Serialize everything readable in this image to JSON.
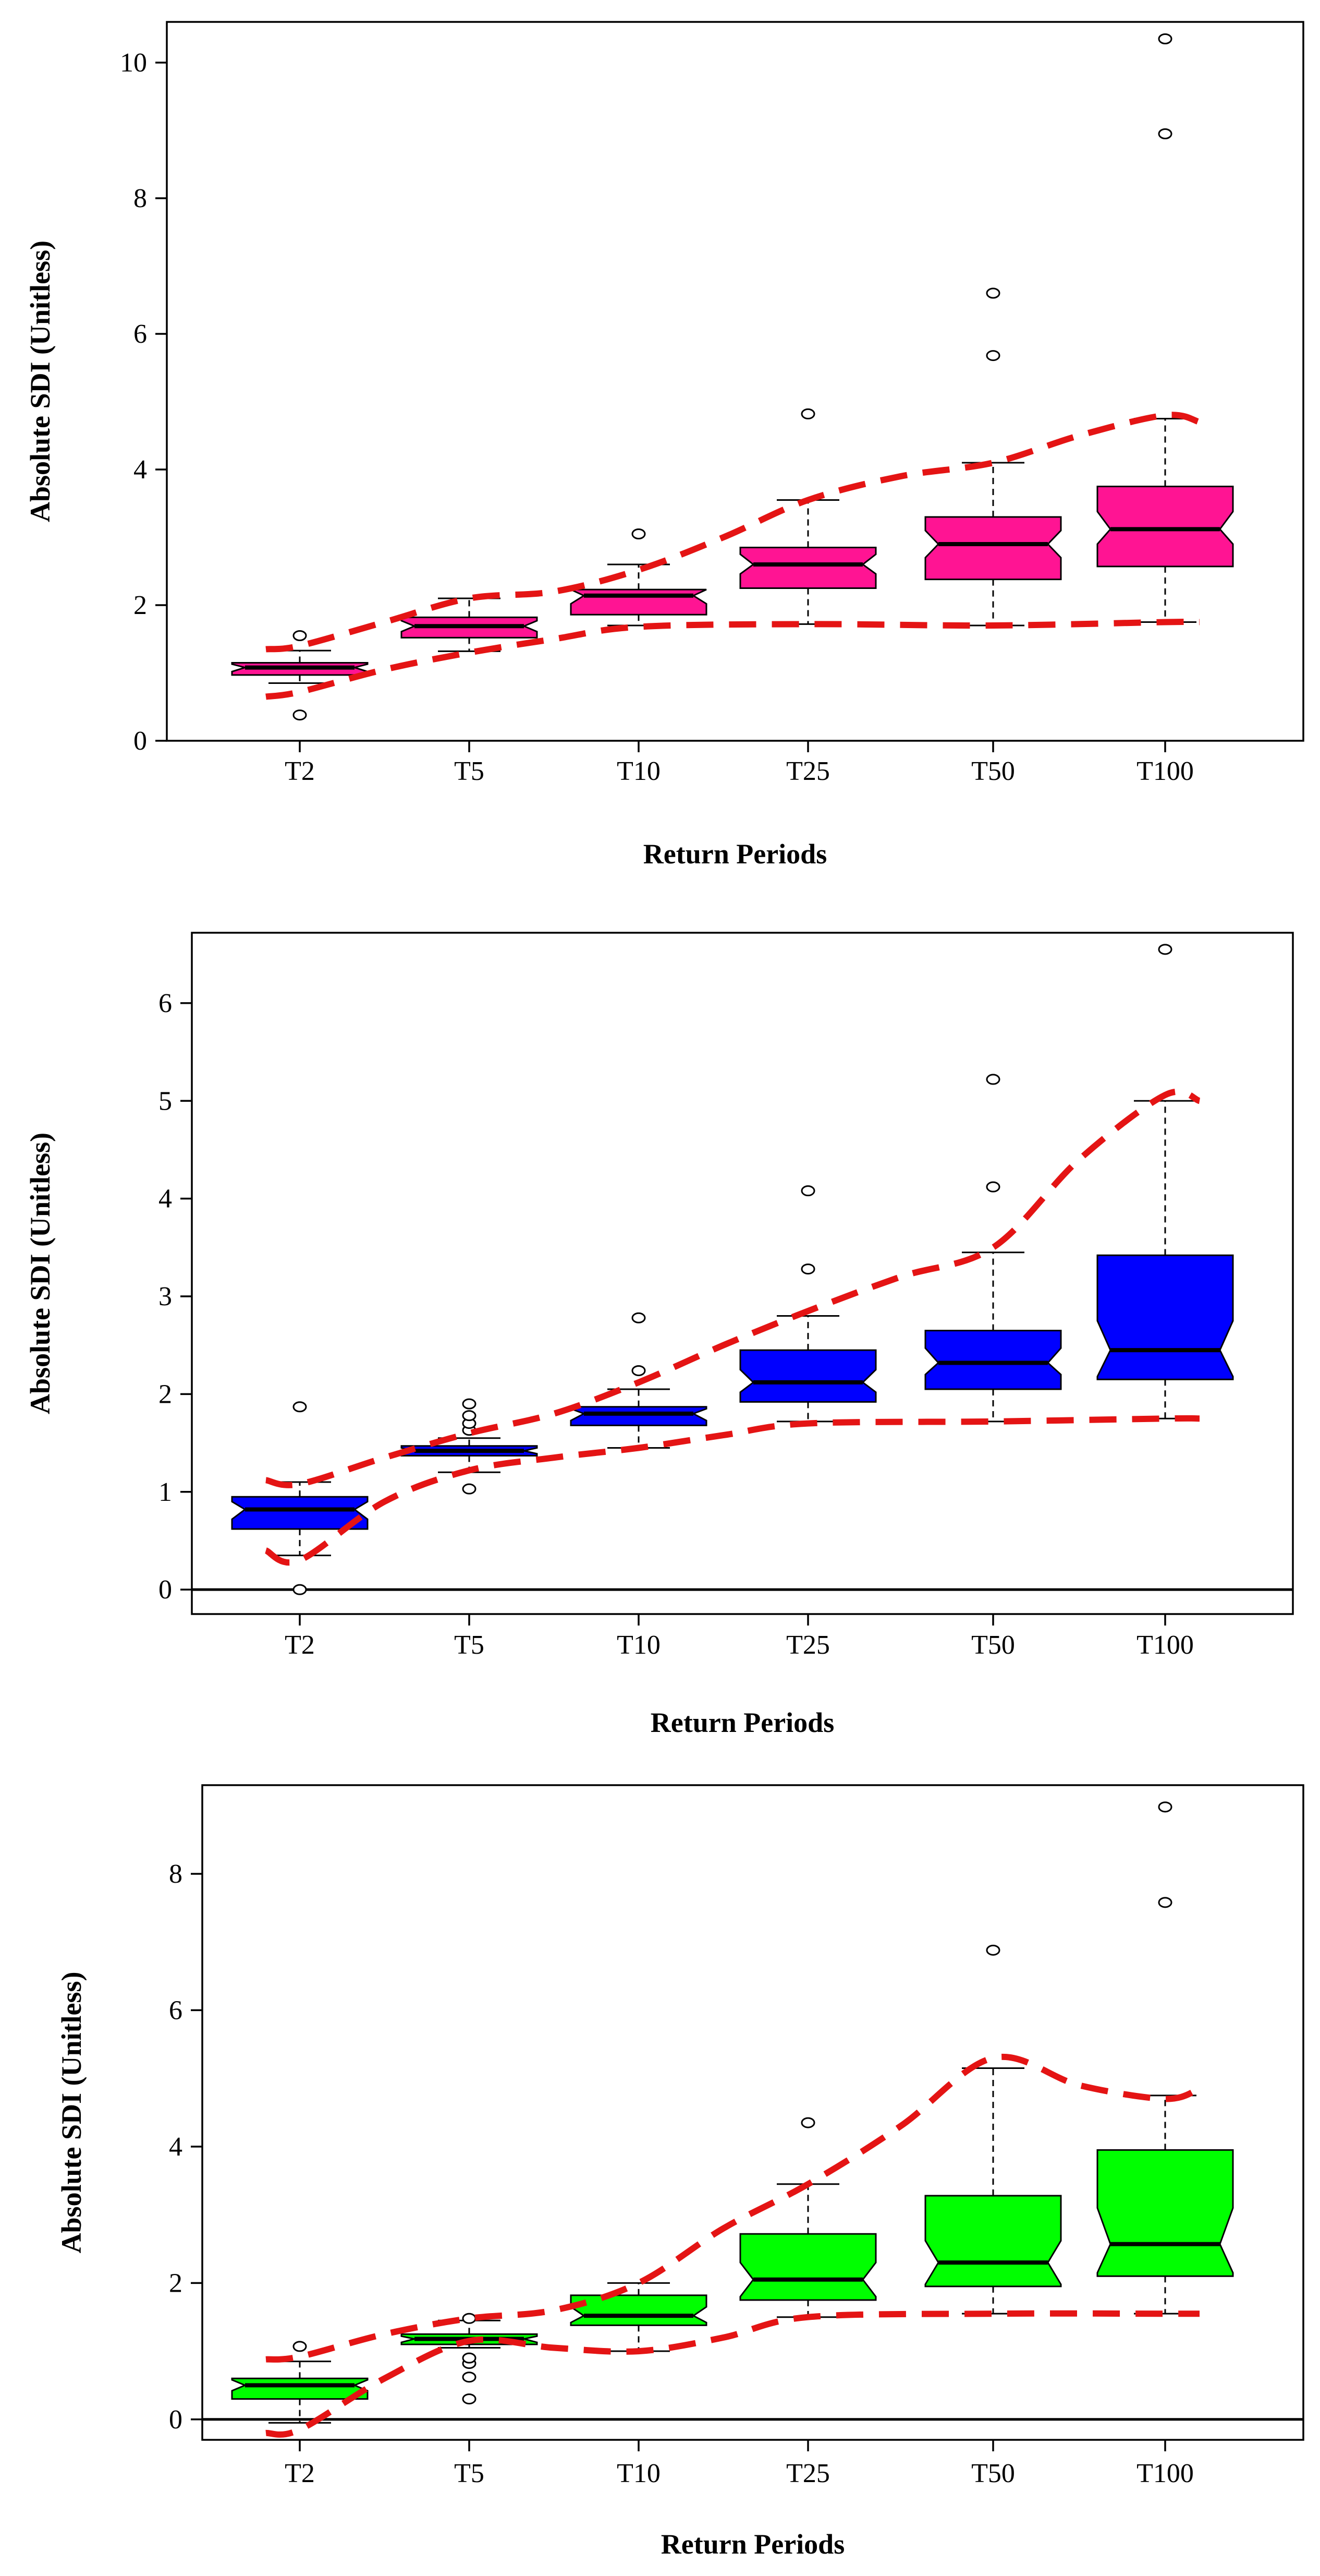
{
  "chart_data": [
    {
      "type": "box",
      "ylabel": "Absolute SDI (Unitless)",
      "xlabel": "Return Periods",
      "ylim": [
        0,
        10.6
      ],
      "yticks": [
        0,
        2,
        4,
        6,
        8,
        10
      ],
      "zero_line": false,
      "fill_color": "#ff1493",
      "categories": [
        "T2",
        "T5",
        "T10",
        "T25",
        "T50",
        "T100"
      ],
      "boxes": [
        {
          "lower_whisker": 0.85,
          "q1": 0.97,
          "median": 1.08,
          "q3": 1.15,
          "upper_whisker": 1.33,
          "notch_lo": 1.02,
          "notch_hi": 1.13,
          "outliers": [
            0.38,
            1.55
          ]
        },
        {
          "lower_whisker": 1.32,
          "q1": 1.52,
          "median": 1.69,
          "q3": 1.82,
          "upper_whisker": 2.1,
          "notch_lo": 1.61,
          "notch_hi": 1.77,
          "outliers": []
        },
        {
          "lower_whisker": 1.7,
          "q1": 1.86,
          "median": 2.14,
          "q3": 2.23,
          "upper_whisker": 2.6,
          "notch_lo": 2.02,
          "notch_hi": 2.24,
          "outliers": [
            3.05
          ]
        },
        {
          "lower_whisker": 1.72,
          "q1": 2.25,
          "median": 2.6,
          "q3": 2.85,
          "upper_whisker": 3.55,
          "notch_lo": 2.46,
          "notch_hi": 2.75,
          "outliers": [
            4.82
          ]
        },
        {
          "lower_whisker": 1.7,
          "q1": 2.38,
          "median": 2.9,
          "q3": 3.3,
          "upper_whisker": 4.1,
          "notch_lo": 2.7,
          "notch_hi": 3.1,
          "outliers": [
            5.68,
            6.6
          ]
        },
        {
          "lower_whisker": 1.75,
          "q1": 2.57,
          "median": 3.12,
          "q3": 3.75,
          "upper_whisker": 4.75,
          "notch_lo": 2.9,
          "notch_hi": 3.38,
          "outliers": [
            8.95,
            10.35
          ]
        }
      ],
      "envelope_upper": [
        [
          -0.2,
          1.35
        ],
        [
          0,
          1.4
        ],
        [
          0.5,
          1.75
        ],
        [
          1,
          2.1
        ],
        [
          1.5,
          2.2
        ],
        [
          2,
          2.52
        ],
        [
          2.5,
          3.0
        ],
        [
          3,
          3.55
        ],
        [
          3.5,
          3.9
        ],
        [
          4,
          4.1
        ],
        [
          4.5,
          4.5
        ],
        [
          5,
          4.8
        ],
        [
          5.2,
          4.7
        ]
      ],
      "envelope_lower": [
        [
          -0.2,
          0.65
        ],
        [
          0,
          0.72
        ],
        [
          0.5,
          1.05
        ],
        [
          1,
          1.3
        ],
        [
          1.5,
          1.5
        ],
        [
          2,
          1.68
        ],
        [
          3,
          1.72
        ],
        [
          4,
          1.7
        ],
        [
          5,
          1.75
        ],
        [
          5.2,
          1.75
        ]
      ]
    },
    {
      "type": "box",
      "ylabel": "Absolute SDI (Unitless)",
      "xlabel": "Return Periods",
      "ylim": [
        -0.25,
        6.72
      ],
      "yticks": [
        0,
        1,
        2,
        3,
        4,
        5,
        6
      ],
      "zero_line": true,
      "fill_color": "#0000ff",
      "categories": [
        "T2",
        "T5",
        "T10",
        "T25",
        "T50",
        "T100"
      ],
      "boxes": [
        {
          "lower_whisker": 0.35,
          "q1": 0.62,
          "median": 0.82,
          "q3": 0.95,
          "upper_whisker": 1.1,
          "notch_lo": 0.72,
          "notch_hi": 0.9,
          "outliers": [
            0.0,
            1.87
          ]
        },
        {
          "lower_whisker": 1.2,
          "q1": 1.37,
          "median": 1.42,
          "q3": 1.47,
          "upper_whisker": 1.55,
          "notch_lo": 1.39,
          "notch_hi": 1.45,
          "outliers": [
            1.03,
            1.63,
            1.7,
            1.78,
            1.9
          ]
        },
        {
          "lower_whisker": 1.45,
          "q1": 1.68,
          "median": 1.8,
          "q3": 1.87,
          "upper_whisker": 2.05,
          "notch_lo": 1.73,
          "notch_hi": 1.85,
          "outliers": [
            2.24,
            2.78
          ]
        },
        {
          "lower_whisker": 1.72,
          "q1": 1.92,
          "median": 2.12,
          "q3": 2.45,
          "upper_whisker": 2.8,
          "notch_lo": 2.02,
          "notch_hi": 2.25,
          "outliers": [
            3.28,
            4.08
          ]
        },
        {
          "lower_whisker": 1.72,
          "q1": 2.05,
          "median": 2.32,
          "q3": 2.65,
          "upper_whisker": 3.45,
          "notch_lo": 2.2,
          "notch_hi": 2.47,
          "outliers": [
            4.12,
            5.22
          ]
        },
        {
          "lower_whisker": 1.75,
          "q1": 2.15,
          "median": 2.45,
          "q3": 3.42,
          "upper_whisker": 5.0,
          "notch_lo": 2.18,
          "notch_hi": 2.75,
          "outliers": [
            6.55
          ]
        }
      ],
      "envelope_upper": [
        [
          -0.2,
          1.12
        ],
        [
          0,
          1.08
        ],
        [
          0.5,
          1.35
        ],
        [
          1,
          1.6
        ],
        [
          1.5,
          1.8
        ],
        [
          2,
          2.12
        ],
        [
          2.5,
          2.5
        ],
        [
          3,
          2.85
        ],
        [
          3.5,
          3.2
        ],
        [
          4,
          3.5
        ],
        [
          4.5,
          4.4
        ],
        [
          5,
          5.06
        ],
        [
          5.2,
          5.0
        ]
      ],
      "envelope_lower": [
        [
          -0.2,
          0.4
        ],
        [
          0,
          0.3
        ],
        [
          0.5,
          0.9
        ],
        [
          1,
          1.22
        ],
        [
          1.5,
          1.35
        ],
        [
          2,
          1.45
        ],
        [
          2.5,
          1.58
        ],
        [
          3,
          1.7
        ],
        [
          4,
          1.72
        ],
        [
          5,
          1.75
        ],
        [
          5.2,
          1.75
        ]
      ]
    },
    {
      "type": "box",
      "ylabel": "Absolute SDI (Unitless)",
      "xlabel": "Return Periods",
      "ylim": [
        -0.3,
        9.3
      ],
      "yticks": [
        0,
        2,
        4,
        6,
        8
      ],
      "zero_line": true,
      "fill_color": "#00ff00",
      "categories": [
        "T2",
        "T5",
        "T10",
        "T25",
        "T50",
        "T100"
      ],
      "boxes": [
        {
          "lower_whisker": -0.05,
          "q1": 0.3,
          "median": 0.5,
          "q3": 0.6,
          "upper_whisker": 0.85,
          "notch_lo": 0.42,
          "notch_hi": 0.58,
          "outliers": [
            1.07
          ]
        },
        {
          "lower_whisker": 1.05,
          "q1": 1.1,
          "median": 1.18,
          "q3": 1.25,
          "upper_whisker": 1.45,
          "notch_lo": 1.13,
          "notch_hi": 1.22,
          "outliers": [
            0.3,
            0.62,
            0.82,
            0.9,
            1.48
          ]
        },
        {
          "lower_whisker": 1.0,
          "q1": 1.38,
          "median": 1.52,
          "q3": 1.82,
          "upper_whisker": 2.0,
          "notch_lo": 1.42,
          "notch_hi": 1.65,
          "outliers": []
        },
        {
          "lower_whisker": 1.5,
          "q1": 1.75,
          "median": 2.05,
          "q3": 2.72,
          "upper_whisker": 3.45,
          "notch_lo": 1.8,
          "notch_hi": 2.3,
          "outliers": [
            4.35
          ]
        },
        {
          "lower_whisker": 1.55,
          "q1": 1.95,
          "median": 2.3,
          "q3": 3.28,
          "upper_whisker": 5.15,
          "notch_lo": 1.98,
          "notch_hi": 2.62,
          "outliers": [
            6.88
          ]
        },
        {
          "lower_whisker": 1.55,
          "q1": 2.1,
          "median": 2.57,
          "q3": 3.95,
          "upper_whisker": 4.75,
          "notch_lo": 2.15,
          "notch_hi": 3.1,
          "outliers": [
            7.58,
            8.98
          ]
        }
      ],
      "envelope_upper": [
        [
          -0.2,
          0.88
        ],
        [
          0,
          0.92
        ],
        [
          0.5,
          1.25
        ],
        [
          1,
          1.48
        ],
        [
          1.5,
          1.6
        ],
        [
          2,
          2.0
        ],
        [
          2.5,
          2.8
        ],
        [
          3,
          3.45
        ],
        [
          3.5,
          4.3
        ],
        [
          4,
          5.3
        ],
        [
          4.5,
          4.9
        ],
        [
          5,
          4.7
        ],
        [
          5.2,
          4.85
        ]
      ],
      "envelope_lower": [
        [
          -0.2,
          -0.2
        ],
        [
          0,
          -0.15
        ],
        [
          0.5,
          0.6
        ],
        [
          1,
          1.15
        ],
        [
          1.5,
          1.05
        ],
        [
          2,
          1.0
        ],
        [
          2.5,
          1.2
        ],
        [
          3,
          1.5
        ],
        [
          4,
          1.55
        ],
        [
          5,
          1.55
        ],
        [
          5.2,
          1.55
        ]
      ]
    }
  ]
}
